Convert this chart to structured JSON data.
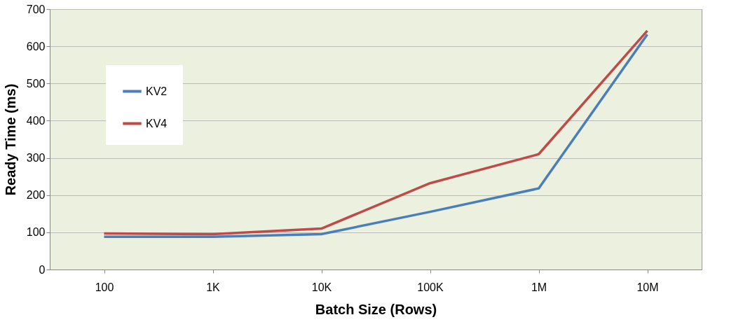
{
  "chart_data": {
    "type": "line",
    "xlabel": "Batch Size (Rows)",
    "ylabel": "Ready Time (ms)",
    "categories": [
      "100",
      "1K",
      "10K",
      "100K",
      "1M",
      "10M"
    ],
    "series": [
      {
        "name": "KV2",
        "color": "#4a7ebb",
        "values": [
          88,
          88,
          95,
          155,
          218,
          632
        ]
      },
      {
        "name": "KV4",
        "color": "#be4b48",
        "values": [
          97,
          95,
          110,
          232,
          310,
          642
        ]
      }
    ],
    "ylim": [
      0,
      700
    ],
    "yticks": [
      0,
      100,
      200,
      300,
      400,
      500,
      600,
      700
    ],
    "grid": "y",
    "legend": "top left",
    "marker": "none",
    "line_style": "solid"
  }
}
